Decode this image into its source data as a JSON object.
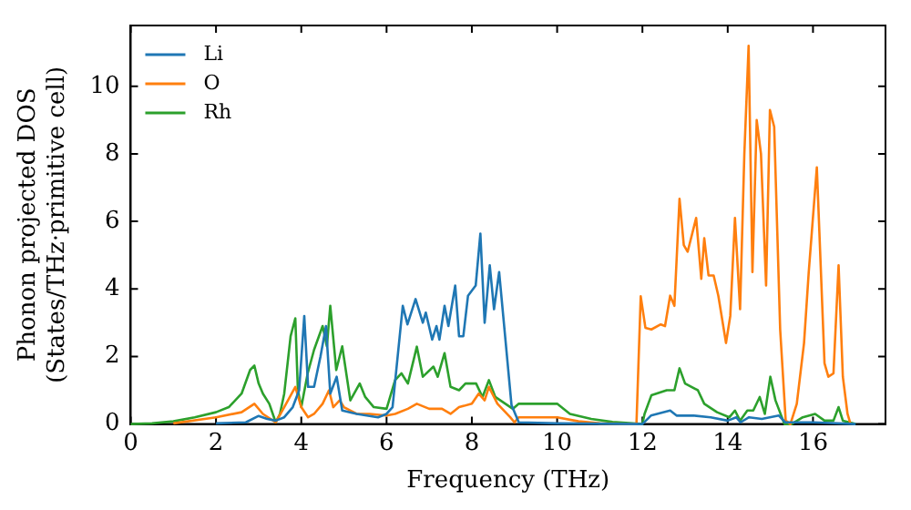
{
  "chart_data": {
    "type": "line",
    "xlabel": "Frequency (THz)",
    "ylabel": "Phonon projected DOS\n(States/THz·primitive cell)",
    "xlim": [
      0,
      17.7
    ],
    "ylim": [
      0,
      11.8
    ],
    "xticks": [
      0,
      2,
      4,
      6,
      8,
      10,
      12,
      14,
      16
    ],
    "yticks": [
      0,
      2,
      4,
      6,
      8,
      10
    ],
    "grid": false,
    "legend": "top left",
    "marker": "none",
    "line_style": "solid",
    "series": [
      {
        "name": "Li",
        "color": "#1f77b4",
        "x": [
          2,
          2.7,
          3.0,
          3.2,
          3.4,
          3.6,
          3.8,
          3.95,
          4.07,
          4.16,
          4.3,
          4.45,
          4.58,
          4.68,
          4.83,
          4.96,
          5.3,
          5.8,
          6.0,
          6.14,
          6.38,
          6.49,
          6.68,
          6.85,
          6.92,
          7.07,
          7.17,
          7.24,
          7.36,
          7.45,
          7.61,
          7.7,
          7.8,
          7.91,
          8.09,
          8.2,
          8.3,
          8.42,
          8.52,
          8.64,
          8.93,
          9.1,
          10,
          12,
          12.2,
          12.65,
          12.8,
          13.2,
          13.6,
          14.0,
          14.2,
          14.3,
          14.5,
          14.8,
          15.2,
          15.35,
          16,
          17
        ],
        "values": [
          0.02,
          0.05,
          0.24,
          0.15,
          0.1,
          0.2,
          0.5,
          1.0,
          3.2,
          1.1,
          1.1,
          2.0,
          2.9,
          0.9,
          1.4,
          0.4,
          0.3,
          0.2,
          0.3,
          0.5,
          3.5,
          2.95,
          3.7,
          3.0,
          3.3,
          2.5,
          2.9,
          2.5,
          3.5,
          2.9,
          4.1,
          2.6,
          2.6,
          3.8,
          4.1,
          5.64,
          3.0,
          4.7,
          3.4,
          4.5,
          0.56,
          0.05,
          0.02,
          0,
          0.25,
          0.4,
          0.25,
          0.25,
          0.2,
          0.1,
          0.2,
          0.05,
          0.2,
          0.15,
          0.25,
          0.05,
          0.05,
          0
        ]
      },
      {
        "name": "O",
        "color": "#ff7f0e",
        "x": [
          1,
          2,
          2.6,
          2.9,
          3.1,
          3.4,
          3.6,
          3.86,
          4.0,
          4.16,
          4.3,
          4.5,
          4.65,
          4.75,
          4.9,
          5.0,
          5.3,
          5.6,
          6.0,
          6.2,
          6.5,
          6.71,
          7.0,
          7.3,
          7.5,
          7.7,
          8.0,
          8.16,
          8.3,
          8.4,
          8.6,
          8.9,
          9.0,
          9.1,
          10.0,
          10.5,
          11.0,
          11.86,
          11.96,
          12.07,
          12.21,
          12.43,
          12.53,
          12.65,
          12.75,
          12.87,
          12.97,
          13.06,
          13.26,
          13.38,
          13.45,
          13.55,
          13.67,
          13.78,
          13.96,
          14.06,
          14.17,
          14.29,
          14.39,
          14.49,
          14.58,
          14.68,
          14.78,
          14.9,
          14.99,
          15.09,
          15.23,
          15.36,
          15.47,
          15.62,
          15.79,
          15.9,
          16.09,
          16.27,
          16.36,
          16.48,
          16.6,
          16.7,
          16.81,
          16.88
        ],
        "values": [
          0.02,
          0.2,
          0.35,
          0.6,
          0.3,
          0.05,
          0.5,
          1.1,
          0.5,
          0.2,
          0.3,
          0.6,
          1.0,
          0.5,
          0.7,
          0.5,
          0.3,
          0.3,
          0.25,
          0.3,
          0.45,
          0.6,
          0.45,
          0.45,
          0.3,
          0.5,
          0.6,
          0.9,
          0.7,
          1.1,
          0.6,
          0.2,
          0.05,
          0.2,
          0.2,
          0.08,
          0.02,
          0,
          3.78,
          2.85,
          2.8,
          2.95,
          2.9,
          3.8,
          3.5,
          6.67,
          5.3,
          5.1,
          6.1,
          4.3,
          5.5,
          4.4,
          4.4,
          3.8,
          2.4,
          3.2,
          6.1,
          3.4,
          8.0,
          11.2,
          4.5,
          9.0,
          8.0,
          4.1,
          9.3,
          8.8,
          2.8,
          0.1,
          0,
          0.6,
          2.4,
          4.5,
          7.6,
          1.8,
          1.4,
          1.5,
          4.7,
          1.4,
          0.3,
          0
        ]
      },
      {
        "name": "Rh",
        "color": "#2ca02c",
        "x": [
          0,
          0.5,
          1,
          1.5,
          2,
          2.3,
          2.6,
          2.8,
          2.9,
          3.0,
          3.1,
          3.25,
          3.4,
          3.5,
          3.6,
          3.75,
          3.86,
          3.92,
          4.0,
          4.15,
          4.3,
          4.5,
          4.6,
          4.68,
          4.82,
          4.96,
          5.15,
          5.37,
          5.5,
          5.7,
          6.0,
          6.2,
          6.35,
          6.5,
          6.71,
          6.85,
          7.1,
          7.2,
          7.36,
          7.5,
          7.7,
          7.85,
          8.1,
          8.25,
          8.4,
          8.55,
          8.96,
          9.1,
          10.0,
          10.3,
          10.8,
          11.3,
          12.0,
          12.05,
          12.21,
          12.57,
          12.75,
          12.87,
          13.0,
          13.3,
          13.45,
          13.75,
          14.04,
          14.17,
          14.29,
          14.46,
          14.6,
          14.75,
          14.87,
          15.0,
          15.12,
          15.33,
          15.5,
          15.76,
          16.05,
          16.27,
          16.48,
          16.6,
          16.7,
          17.0
        ],
        "values": [
          0,
          0.02,
          0.08,
          0.2,
          0.35,
          0.5,
          0.9,
          1.6,
          1.73,
          1.2,
          0.9,
          0.6,
          0.05,
          0.3,
          0.9,
          2.6,
          3.13,
          1.0,
          0.5,
          1.5,
          2.2,
          2.9,
          2.3,
          3.5,
          1.6,
          2.3,
          0.7,
          1.2,
          0.8,
          0.5,
          0.45,
          1.3,
          1.5,
          1.2,
          2.29,
          1.4,
          1.7,
          1.4,
          2.1,
          1.1,
          1.0,
          1.2,
          1.2,
          0.8,
          1.3,
          0.8,
          0.45,
          0.6,
          0.6,
          0.3,
          0.15,
          0.06,
          0,
          0.3,
          0.85,
          1.0,
          1.0,
          1.65,
          1.2,
          1.0,
          0.6,
          0.35,
          0.2,
          0.4,
          0.1,
          0.4,
          0.4,
          0.8,
          0.3,
          1.4,
          0.7,
          0,
          0,
          0.2,
          0.3,
          0.1,
          0.1,
          0.5,
          0.1,
          0
        ]
      }
    ]
  }
}
